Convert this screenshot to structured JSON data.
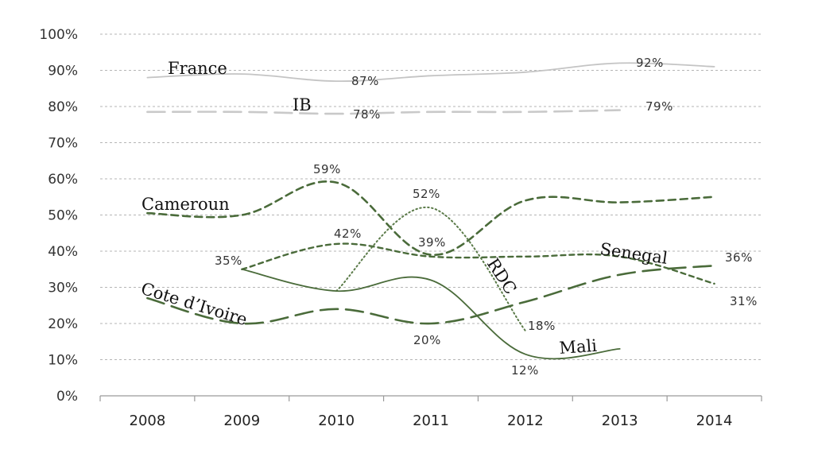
{
  "chart_data": {
    "type": "line",
    "title": "",
    "xlabel": "",
    "ylabel": "",
    "categories": [
      "2008",
      "2009",
      "2010",
      "2011",
      "2012",
      "2013",
      "2014"
    ],
    "yticks": [
      "0%",
      "10%",
      "20%",
      "30%",
      "40%",
      "50%",
      "60%",
      "70%",
      "80%",
      "90%",
      "100%"
    ],
    "ylim": [
      0,
      100
    ],
    "grid": true,
    "legend": "inline labels",
    "series": [
      {
        "name": "France",
        "style": "solid",
        "color": "#c4c4c4",
        "values": [
          88,
          89,
          87,
          88.5,
          89.5,
          92,
          91
        ]
      },
      {
        "name": "IB",
        "style": "longdash",
        "color": "#c9c9c9",
        "values": [
          78.5,
          78.5,
          78,
          78.5,
          78.5,
          79,
          null
        ]
      },
      {
        "name": "Cameroun",
        "style": "dash",
        "color": "#4a6b3a",
        "values": [
          50.5,
          50,
          59,
          39,
          54,
          53.5,
          55
        ]
      },
      {
        "name": "Senegal",
        "style": "shortdash",
        "color": "#4a6b3a",
        "values": [
          null,
          35,
          42,
          38.5,
          38.5,
          38.5,
          31
        ]
      },
      {
        "name": "RDC",
        "style": "dotted",
        "color": "#5a7a48",
        "values": [
          null,
          null,
          29,
          52,
          18,
          null,
          null
        ]
      },
      {
        "name": "Cote d’Ivoire",
        "style": "longdash",
        "color": "#4a6b3a",
        "values": [
          27,
          20,
          24,
          20,
          26,
          33.5,
          36
        ]
      },
      {
        "name": "Mali",
        "style": "solid",
        "color": "#4a6b3a",
        "values": [
          null,
          35,
          29,
          32,
          11.5,
          13,
          null
        ]
      }
    ],
    "series_labels": {
      "France": "France",
      "IB": "IB",
      "Cameroun": "Cameroun",
      "Senegal": "Senegal",
      "RDC": "RDC",
      "CoteIvoire": "Cote d’Ivoire",
      "Mali": "Mali"
    },
    "data_labels": {
      "france_2010": "87%",
      "france_2013": "92%",
      "ib_2010": "78%",
      "ib_2014": "79%",
      "cameroun_2010": "59%",
      "rdc_2011": "52%",
      "senegal_2010": "42%",
      "cameroun_2011": "39%",
      "mali_2009": "35%",
      "civ_2014": "36%",
      "senegal_2014": "31%",
      "rdc_2012": "18%",
      "civ_2011": "20%",
      "mali_2012": "12%"
    }
  }
}
